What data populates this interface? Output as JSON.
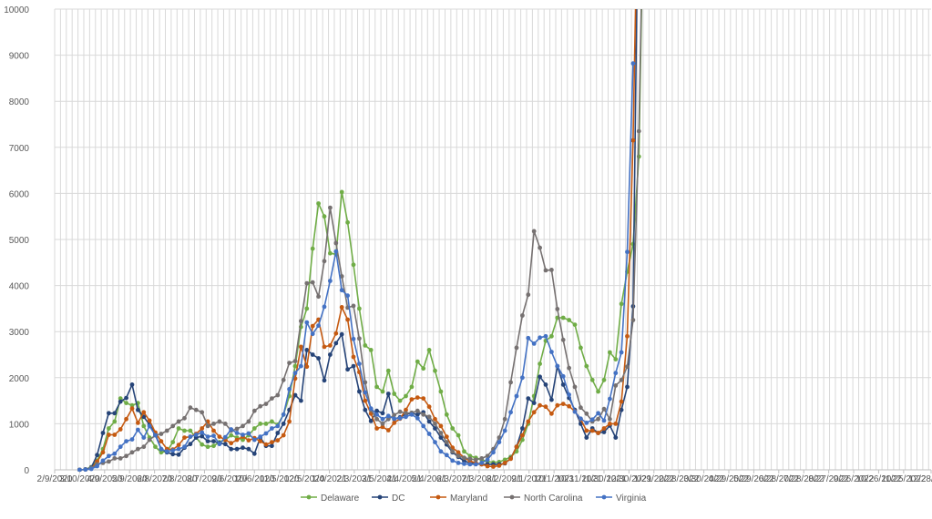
{
  "chart_data": {
    "type": "line",
    "title": "",
    "xlabel": "",
    "ylabel": "",
    "ylim": [
      0,
      10000
    ],
    "yticks": [
      0,
      1000,
      2000,
      3000,
      4000,
      5000,
      6000,
      7000,
      8000,
      9000,
      10000
    ],
    "xlim": [
      "2020-02-09",
      "2022-12-28"
    ],
    "xtick_labels": [
      "2/9/2020",
      "3/10/2020",
      "4/9/2020",
      "5/9/2020",
      "6/8/2020",
      "7/8/2020",
      "8/7/2020",
      "9/6/2020",
      "10/6/2020",
      "11/5/2020",
      "12/5/2020",
      "1/4/2021",
      "2/3/2021",
      "3/5/2021",
      "4/4/2021",
      "5/4/2021",
      "6/3/2021",
      "7/3/2021",
      "8/2/2021",
      "9/1/2021",
      "10/1/2021",
      "10/31/2021",
      "11/30/2021",
      "12/30/2021",
      "1/29/2022",
      "2/28/2022",
      "3/30/2022",
      "4/29/2022",
      "5/29/2022",
      "6/28/2022",
      "7/28/2022",
      "8/27/2022",
      "9/26/2022",
      "10/26/2022",
      "11/25/2022",
      "12/28/2022"
    ],
    "grid": true,
    "legend": "bottom",
    "x_start": "2020-03-10",
    "x_step_days": 7,
    "series": [
      {
        "name": "Delaware",
        "color": "#70AD47",
        "values": [
          0,
          10,
          60,
          200,
          450,
          900,
          1050,
          1550,
          1450,
          1400,
          1450,
          950,
          700,
          500,
          380,
          400,
          600,
          900,
          850,
          850,
          700,
          550,
          500,
          520,
          600,
          650,
          750,
          700,
          650,
          750,
          900,
          1000,
          1000,
          1050,
          980,
          1200,
          1600,
          2250,
          3100,
          3500,
          4800,
          5780,
          5500,
          4700,
          4680,
          6030,
          5370,
          4450,
          3500,
          2700,
          2600,
          1800,
          1700,
          2150,
          1650,
          1500,
          1600,
          1800,
          2350,
          2200,
          2600,
          2150,
          1700,
          1200,
          900,
          750,
          400,
          300,
          260,
          220,
          180,
          160,
          170,
          220,
          280,
          400,
          650,
          1000,
          1600,
          2300,
          2800,
          2900,
          3300,
          3300,
          3250,
          3150,
          2650,
          2250,
          1950,
          1700,
          1950,
          2550,
          2400,
          3600,
          4300,
          4900,
          6800,
          14000
        ]
      },
      {
        "name": "DC",
        "color": "#264478",
        "values": [
          0,
          10,
          50,
          320,
          800,
          1230,
          1230,
          1480,
          1560,
          1850,
          1300,
          1150,
          980,
          780,
          450,
          380,
          340,
          330,
          480,
          560,
          700,
          730,
          620,
          620,
          580,
          560,
          450,
          450,
          480,
          450,
          350,
          700,
          520,
          520,
          800,
          1000,
          1300,
          1620,
          1500,
          2600,
          2500,
          2420,
          1940,
          2500,
          2750,
          2940,
          2180,
          2250,
          1700,
          1300,
          1060,
          1280,
          1230,
          1650,
          1100,
          1140,
          1210,
          1230,
          1200,
          1250,
          1050,
          900,
          700,
          550,
          380,
          280,
          190,
          150,
          130,
          120,
          120,
          120,
          120,
          140,
          250,
          500,
          900,
          1550,
          1450,
          2020,
          1850,
          1520,
          2250,
          1850,
          1560,
          1300,
          1000,
          700,
          900,
          800,
          820,
          960,
          700,
          1300,
          1800,
          3550,
          14000
        ]
      },
      {
        "name": "Maryland",
        "color": "#C55A11",
        "values": [
          0,
          5,
          30,
          180,
          380,
          760,
          760,
          880,
          1100,
          1330,
          1020,
          1250,
          1070,
          810,
          620,
          450,
          440,
          540,
          700,
          720,
          780,
          900,
          1050,
          850,
          720,
          650,
          580,
          650,
          720,
          640,
          690,
          620,
          550,
          600,
          640,
          750,
          1050,
          1980,
          2670,
          2240,
          3120,
          3260,
          2670,
          2700,
          2960,
          3530,
          3260,
          2450,
          2120,
          1500,
          1220,
          900,
          930,
          860,
          1020,
          1110,
          1300,
          1530,
          1570,
          1550,
          1370,
          1100,
          950,
          720,
          480,
          380,
          260,
          190,
          150,
          120,
          80,
          70,
          90,
          150,
          240,
          500,
          750,
          1050,
          1250,
          1400,
          1370,
          1220,
          1400,
          1430,
          1380,
          1270,
          1100,
          850,
          850,
          800,
          900,
          1000,
          1000,
          1480,
          2900,
          7150,
          14000
        ]
      },
      {
        "name": "North Carolina",
        "color": "#767171",
        "values": [
          0,
          10,
          40,
          120,
          150,
          180,
          250,
          250,
          300,
          380,
          450,
          500,
          650,
          750,
          780,
          850,
          950,
          1050,
          1120,
          1350,
          1300,
          1250,
          950,
          1000,
          1050,
          1000,
          850,
          890,
          950,
          1050,
          1280,
          1380,
          1430,
          1550,
          1620,
          1950,
          2320,
          2360,
          3230,
          4050,
          4070,
          3760,
          4530,
          5690,
          4920,
          4200,
          3520,
          3560,
          2850,
          1900,
          1300,
          1100,
          1000,
          1100,
          1190,
          1260,
          1230,
          1240,
          1280,
          1200,
          1150,
          1000,
          800,
          600,
          400,
          300,
          260,
          240,
          220,
          250,
          300,
          450,
          700,
          1100,
          1900,
          2650,
          3350,
          3800,
          5180,
          4820,
          4330,
          4340,
          3490,
          2820,
          2210,
          1800,
          1350,
          1220,
          1050,
          1100,
          1320,
          1100,
          1830,
          1950,
          2240,
          3250,
          7350,
          14000
        ]
      },
      {
        "name": "Virginia",
        "color": "#4472C4",
        "values": [
          0,
          5,
          20,
          80,
          200,
          300,
          350,
          500,
          620,
          660,
          870,
          700,
          950,
          750,
          450,
          400,
          420,
          450,
          500,
          720,
          760,
          810,
          720,
          740,
          560,
          710,
          880,
          800,
          760,
          790,
          650,
          720,
          790,
          900,
          950,
          1200,
          1750,
          2100,
          2250,
          3200,
          2950,
          3130,
          3540,
          4100,
          4740,
          3900,
          3780,
          2840,
          2300,
          1680,
          1330,
          1200,
          1100,
          1170,
          1110,
          1120,
          1150,
          1200,
          1120,
          950,
          780,
          600,
          400,
          320,
          200,
          150,
          130,
          120,
          120,
          150,
          220,
          380,
          600,
          850,
          1250,
          1600,
          2000,
          2860,
          2740,
          2870,
          2900,
          2560,
          2250,
          2030,
          1630,
          1260,
          1110,
          1020,
          1090,
          1230,
          1070,
          1540,
          2100,
          2550,
          4730,
          8820
        ]
      }
    ]
  }
}
